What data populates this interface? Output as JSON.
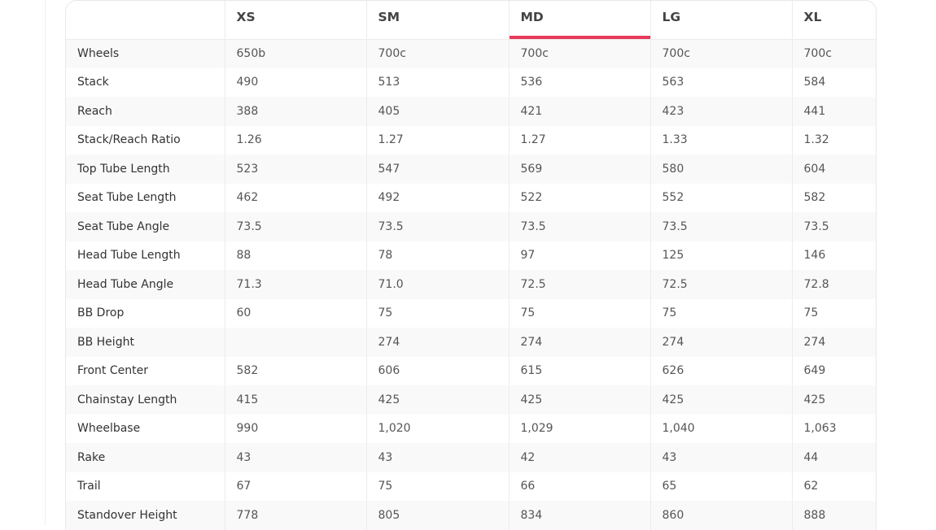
{
  "colors": {
    "accent": "#e8395a"
  },
  "table": {
    "corner_label": "",
    "active_size": "MD",
    "sizes": [
      "XS",
      "SM",
      "MD",
      "LG",
      "XL"
    ],
    "rows": [
      {
        "label": "Wheels",
        "values": [
          "650b",
          "700c",
          "700c",
          "700c",
          "700c"
        ]
      },
      {
        "label": "Stack",
        "values": [
          "490",
          "513",
          "536",
          "563",
          "584"
        ]
      },
      {
        "label": "Reach",
        "values": [
          "388",
          "405",
          "421",
          "423",
          "441"
        ]
      },
      {
        "label": "Stack/Reach Ratio",
        "values": [
          "1.26",
          "1.27",
          "1.27",
          "1.33",
          "1.32"
        ]
      },
      {
        "label": "Top Tube Length",
        "values": [
          "523",
          "547",
          "569",
          "580",
          "604"
        ]
      },
      {
        "label": "Seat Tube Length",
        "values": [
          "462",
          "492",
          "522",
          "552",
          "582"
        ]
      },
      {
        "label": "Seat Tube Angle",
        "values": [
          "73.5",
          "73.5",
          "73.5",
          "73.5",
          "73.5"
        ]
      },
      {
        "label": "Head Tube Length",
        "values": [
          "88",
          "78",
          "97",
          "125",
          "146"
        ]
      },
      {
        "label": "Head Tube Angle",
        "values": [
          "71.3",
          "71.0",
          "72.5",
          "72.5",
          "72.8"
        ]
      },
      {
        "label": "BB Drop",
        "values": [
          "60",
          "75",
          "75",
          "75",
          "75"
        ]
      },
      {
        "label": "BB Height",
        "values": [
          "",
          "274",
          "274",
          "274",
          "274"
        ]
      },
      {
        "label": "Front Center",
        "values": [
          "582",
          "606",
          "615",
          "626",
          "649"
        ]
      },
      {
        "label": "Chainstay Length",
        "values": [
          "415",
          "425",
          "425",
          "425",
          "425"
        ]
      },
      {
        "label": "Wheelbase",
        "values": [
          "990",
          "1,020",
          "1,029",
          "1,040",
          "1,063"
        ]
      },
      {
        "label": "Rake",
        "values": [
          "43",
          "43",
          "42",
          "43",
          "44"
        ]
      },
      {
        "label": "Trail",
        "values": [
          "67",
          "75",
          "66",
          "65",
          "62"
        ]
      },
      {
        "label": "Standover Height",
        "values": [
          "778",
          "805",
          "834",
          "860",
          "888"
        ]
      }
    ]
  }
}
